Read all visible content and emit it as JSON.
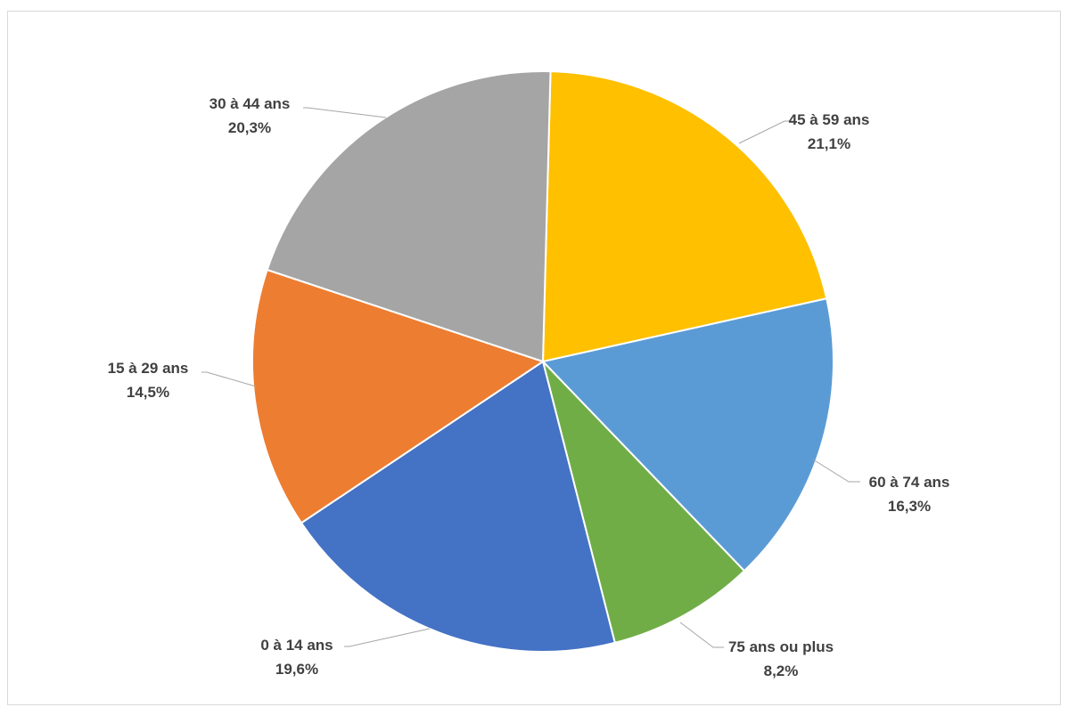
{
  "chart_data": {
    "type": "pie",
    "title": "",
    "slices": [
      {
        "label": "45 à 59 ans",
        "value": 21.1,
        "value_label": "21,1%",
        "color": "#FFC000"
      },
      {
        "label": "60 à 74 ans",
        "value": 16.3,
        "value_label": "16,3%",
        "color": "#5B9BD5"
      },
      {
        "label": "75 ans ou plus",
        "value": 8.2,
        "value_label": "8,2%",
        "color": "#70AD47"
      },
      {
        "label": "0 à 14 ans",
        "value": 19.6,
        "value_label": "19,6%",
        "color": "#4472C4"
      },
      {
        "label": "15 à 29 ans",
        "value": 14.5,
        "value_label": "14,5%",
        "color": "#ED7D31"
      },
      {
        "label": "30 à 44 ans",
        "value": 20.3,
        "value_label": "20,3%",
        "color": "#A5A5A5"
      }
    ],
    "legend": "none",
    "data_labels": "outside-with-leader-lines"
  }
}
